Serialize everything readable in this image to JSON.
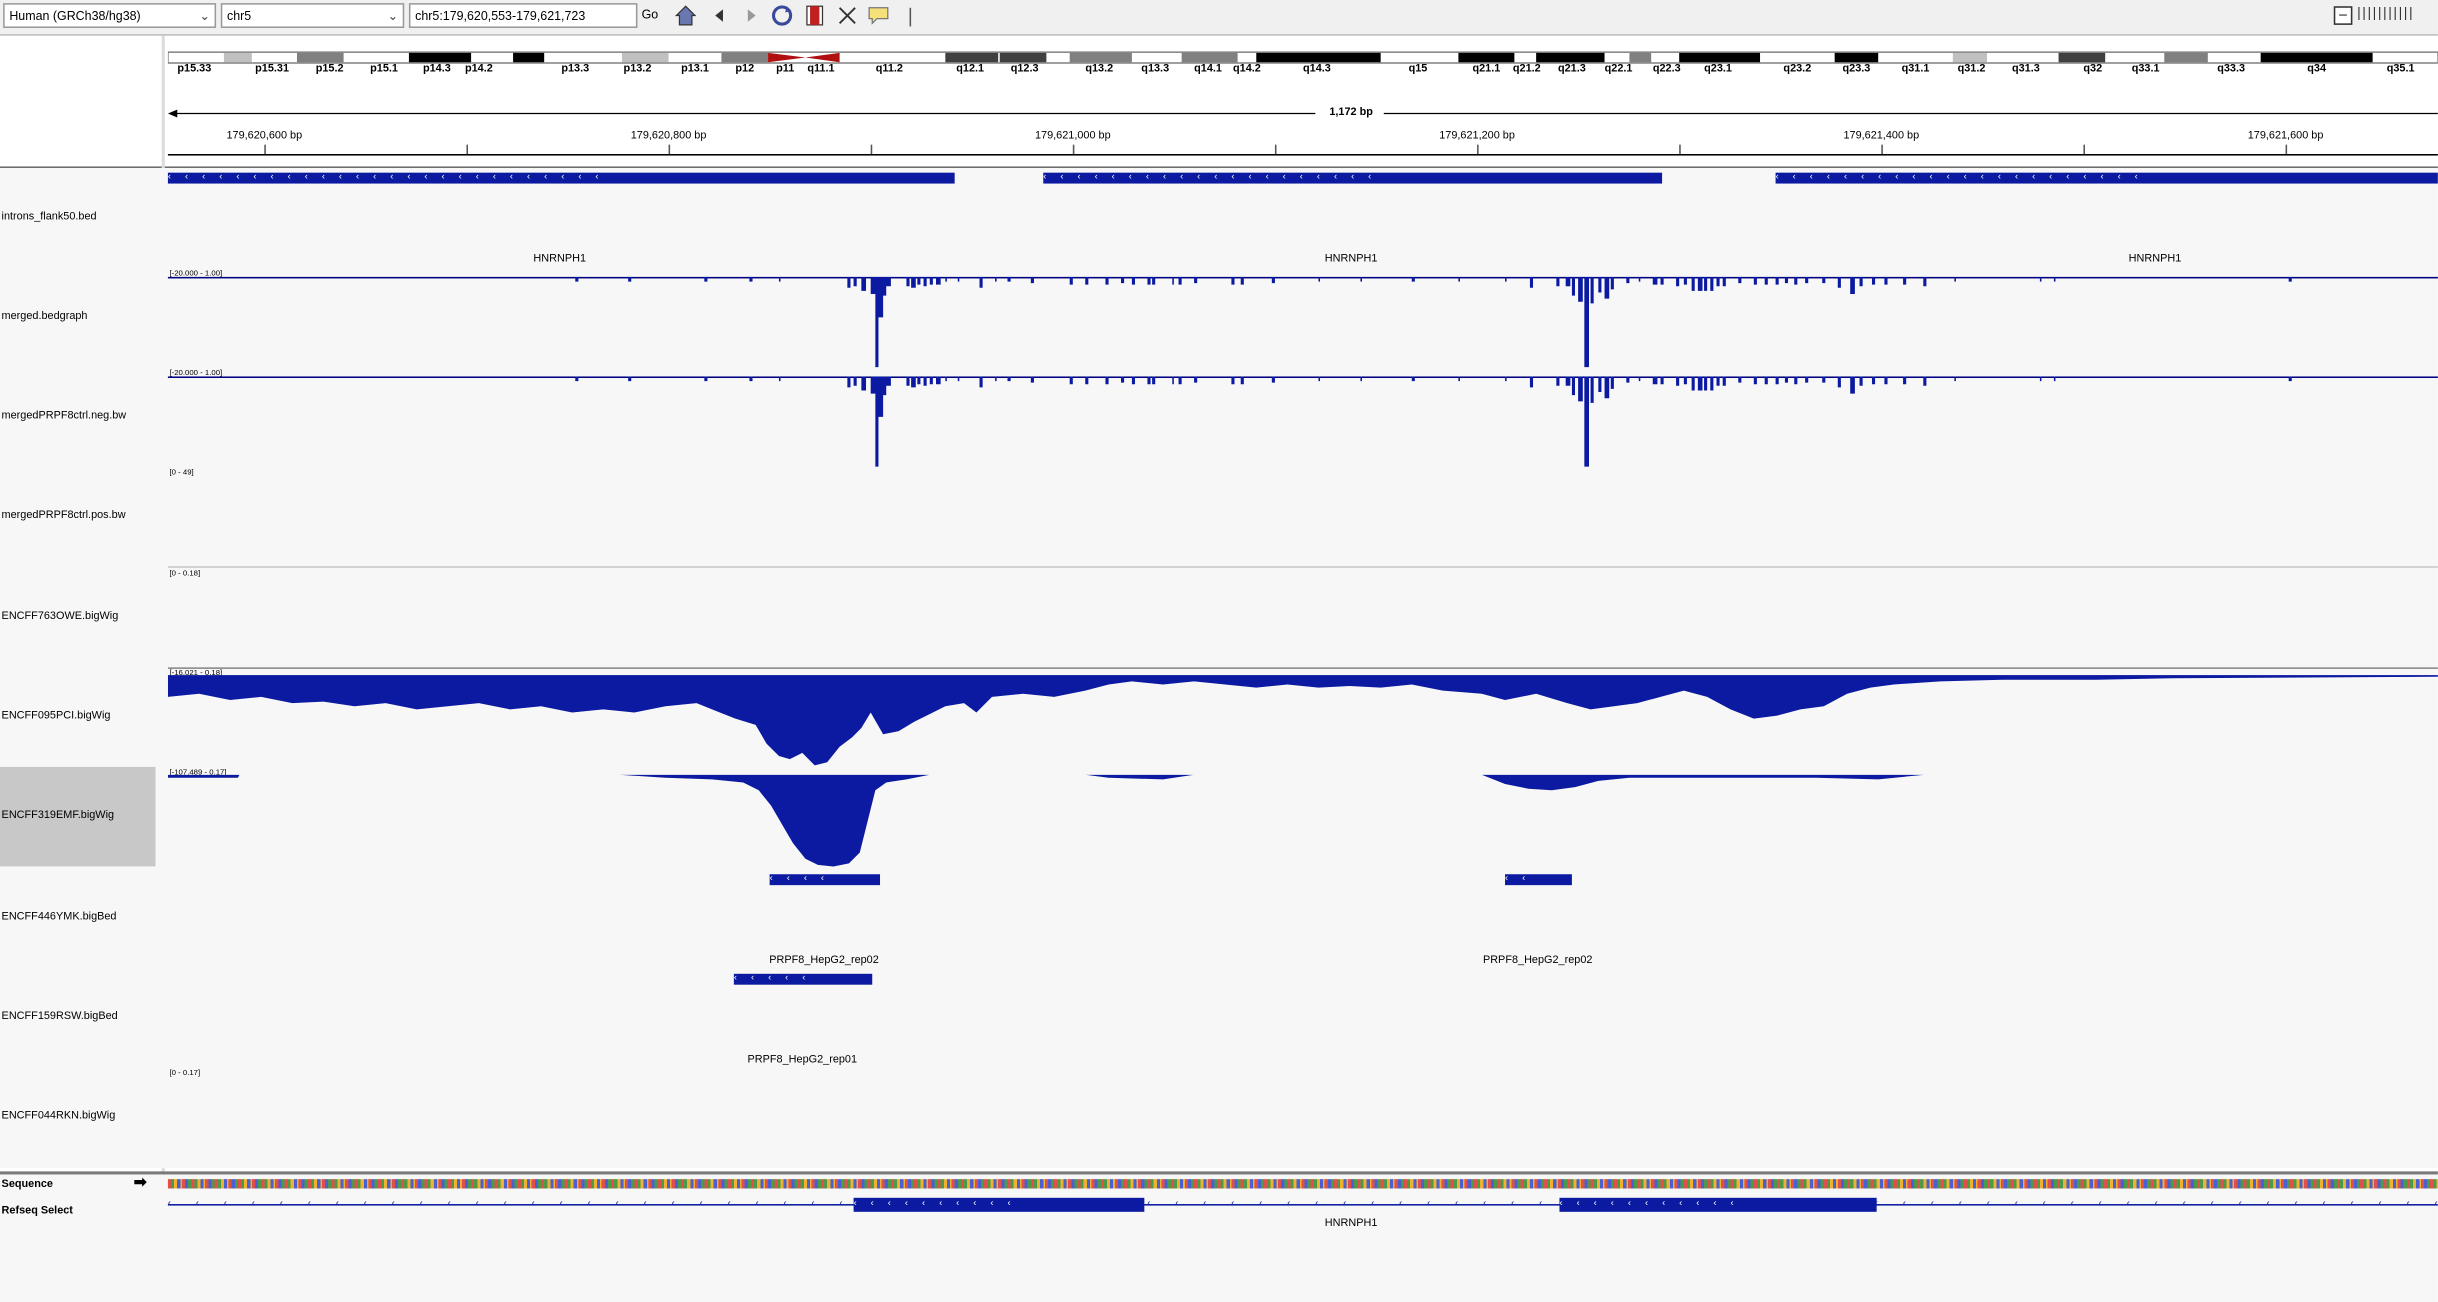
{
  "toolbar": {
    "genome": "Human (GRCh38/hg38)",
    "chromosome": "chr5",
    "locus": "chr5:179,620,553-179,621,723",
    "go_label": "Go",
    "zoom_ticks": "|||||||||||"
  },
  "ideogram": {
    "bands": [
      "p15.33",
      "p15.31",
      "p15.2",
      "p15.1",
      "p14.3",
      "p14.2",
      "p13.3",
      "p13.2",
      "p13.1",
      "p12",
      "p11",
      "q11.1",
      "q11.2",
      "q12.1",
      "q12.3",
      "q13.2",
      "q13.3",
      "q14.1",
      "q14.2",
      "q14.3",
      "q15",
      "q21.1",
      "q21.2",
      "q21.3",
      "q22.1",
      "q22.3",
      "q23.1",
      "q23.2",
      "q23.3",
      "q31.1",
      "q31.2",
      "q31.3",
      "q32",
      "q33.1",
      "q33.3",
      "q34",
      "q35.1"
    ]
  },
  "ruler": {
    "span_label": "1,172 bp",
    "ticks": [
      "179,620,600 bp",
      "179,620,800 bp",
      "179,621,000 bp",
      "179,621,200 bp",
      "179,621,400 bp",
      "179,621,600 bp"
    ]
  },
  "tracks": {
    "introns": {
      "name": "introns_flank50.bed",
      "features": [
        "HNRNPH1",
        "HNRNPH1",
        "HNRNPH1"
      ]
    },
    "merged_bedgraph": {
      "name": "merged.bedgraph",
      "range": "[-20.000 - 1.00]"
    },
    "merged_neg": {
      "name": "mergedPRPF8ctrl.neg.bw",
      "range": "[-20.000 - 1.00]"
    },
    "merged_pos": {
      "name": "mergedPRPF8ctrl.pos.bw",
      "range": "[0 - 49]"
    },
    "encff763": {
      "name": "ENCFF763OWE.bigWig",
      "range": "[0 - 0.18]"
    },
    "encff095": {
      "name": "ENCFF095PCI.bigWig",
      "range": "[-16.021 - 0.18]"
    },
    "encff319": {
      "name": "ENCFF319EMF.bigWig",
      "range": "[-107.489 - 0.17]"
    },
    "encff446": {
      "name": "ENCFF446YMK.bigBed",
      "features": [
        "PRPF8_HepG2_rep02",
        "PRPF8_HepG2_rep02"
      ]
    },
    "encff159": {
      "name": "ENCFF159RSW.bigBed",
      "features": [
        "PRPF8_HepG2_rep01"
      ]
    },
    "encff044": {
      "name": "ENCFF044RKN.bigWig",
      "range": "[0 - 0.17]"
    }
  },
  "bottom": {
    "sequence_label": "Sequence",
    "refseq_label": "Refseq Select",
    "gene_label": "HNRNPH1"
  },
  "colors": {
    "feature": "#0b1aa0",
    "selected_track": "#c8c8c8"
  }
}
